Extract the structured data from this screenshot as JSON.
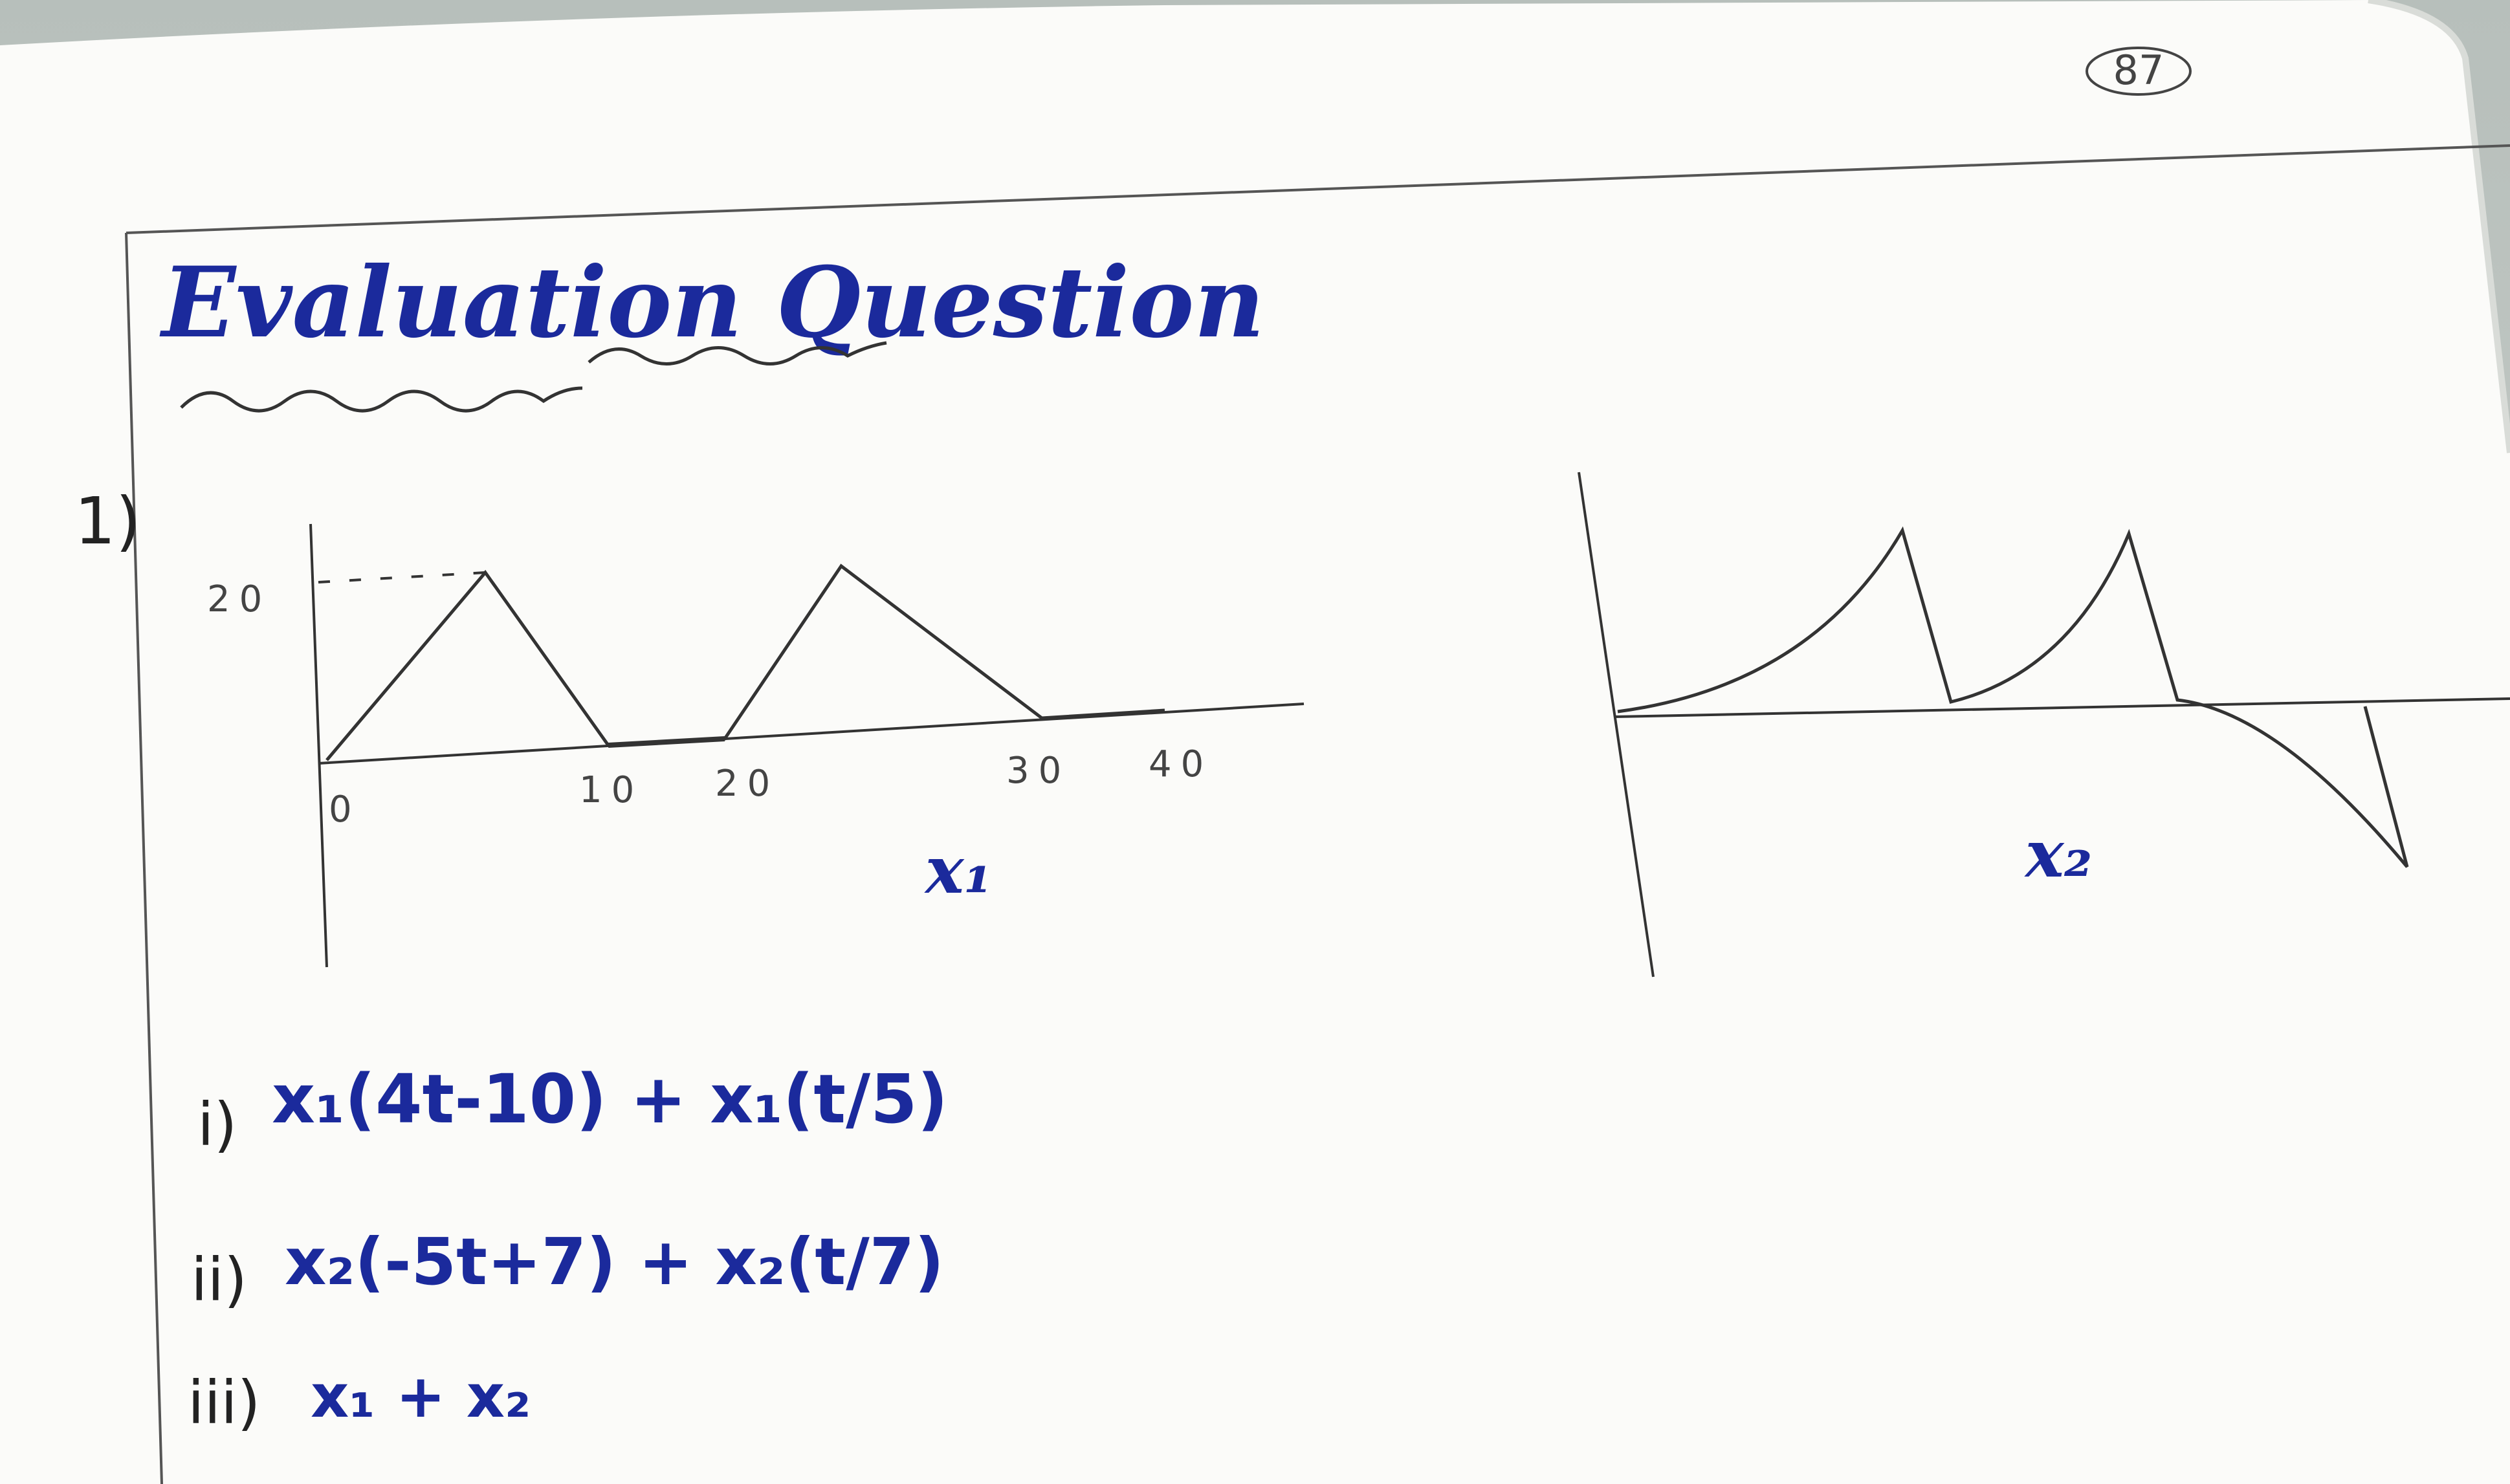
{
  "page": {
    "page_number": "87",
    "heading": "Evaluation Question",
    "question_number": "1)"
  },
  "graphs": {
    "x1": {
      "label": "x₁",
      "y_tick": "20",
      "x_ticks": [
        "0",
        "10",
        "20",
        "30",
        "40"
      ]
    },
    "x2": {
      "label": "x₂"
    }
  },
  "tasks": [
    {
      "num": "i)",
      "expr": "x₁(4t-10) + x₁(t/5)"
    },
    {
      "num": "ii)",
      "expr": "x₂(-5t+7) + x₂(t/7)"
    },
    {
      "num": "iii)",
      "expr": "x₁ + x₂"
    }
  ],
  "colors": {
    "ink_blue": "#1b2a9c",
    "pencil": "#3c3c3c",
    "paper": "#fbfbf9"
  }
}
